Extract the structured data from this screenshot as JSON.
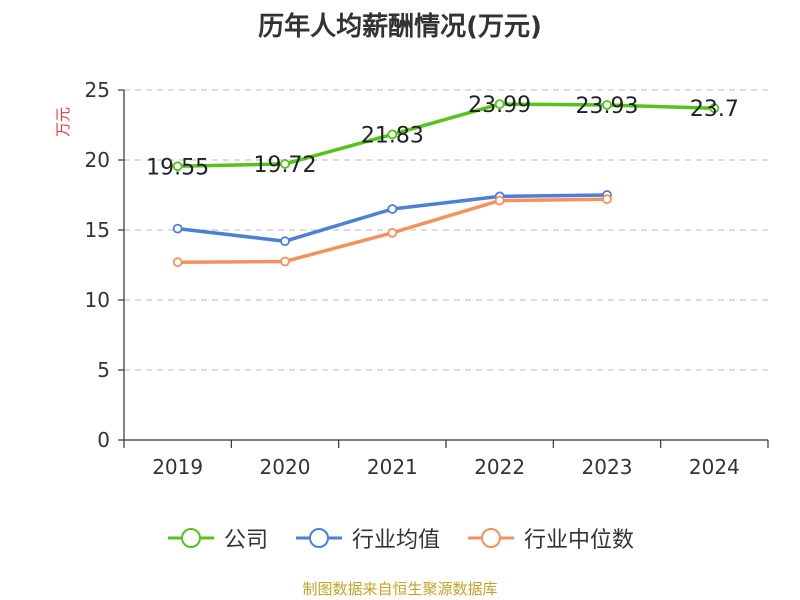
{
  "chart_data": {
    "type": "line",
    "title": "历年人均薪酬情况(万元)",
    "ylabel": "万元",
    "categories": [
      "2019",
      "2020",
      "2021",
      "2022",
      "2023",
      "2024"
    ],
    "ylim": [
      0,
      25
    ],
    "yticks": [
      0,
      5,
      10,
      15,
      20,
      25
    ],
    "grid": true,
    "legend_position": "bottom",
    "series": [
      {
        "name": "公司",
        "color": "#52c41a",
        "show_labels": true,
        "values": [
          19.55,
          19.72,
          21.83,
          23.99,
          23.93,
          23.7
        ]
      },
      {
        "name": "行业均值",
        "color": "#4e7fd6",
        "show_labels": false,
        "values": [
          15.1,
          14.2,
          16.5,
          17.4,
          17.5,
          null
        ]
      },
      {
        "name": "行业中位数",
        "color": "#f4925e",
        "show_labels": false,
        "values": [
          12.7,
          12.75,
          14.8,
          17.1,
          17.2,
          null
        ]
      }
    ],
    "data_labels": [
      "19.55",
      "19.72",
      "21.83",
      "23.99",
      "23.93",
      "23.7"
    ]
  },
  "footer": {
    "source": "制图数据来自恒生聚源数据库"
  },
  "colors": {
    "ylabel": "#e03c3c",
    "grid": "#c8c8c8",
    "axis": "#333333"
  }
}
